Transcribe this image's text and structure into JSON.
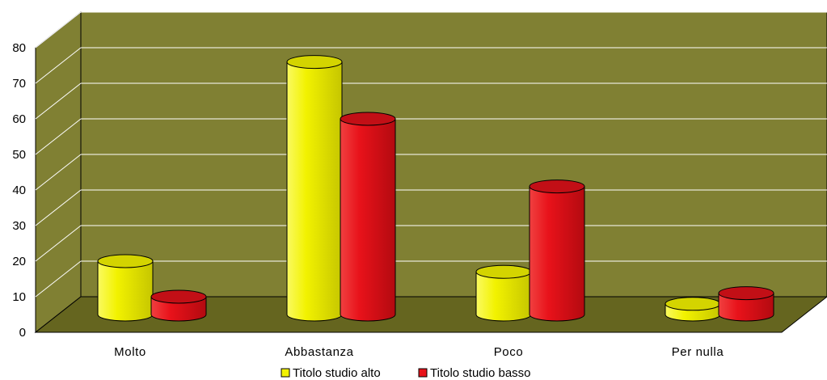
{
  "chart_data": {
    "type": "bar",
    "categories": [
      "Molto",
      "Abbastanza",
      "Poco",
      "Per nulla"
    ],
    "series": [
      {
        "name": "Titolo studio alto",
        "values": [
          15,
          71,
          12,
          3
        ],
        "color": "#f2f200"
      },
      {
        "name": "Titolo studio basso",
        "values": [
          5,
          55,
          36,
          6
        ],
        "color": "#e8121a"
      }
    ],
    "ylim": [
      0,
      80
    ],
    "yticks": [
      0,
      10,
      20,
      30,
      40,
      50,
      60,
      70,
      80
    ],
    "grid": true,
    "legend": "bottom",
    "wall_color": "#808033",
    "floor_color": "#65651f"
  }
}
